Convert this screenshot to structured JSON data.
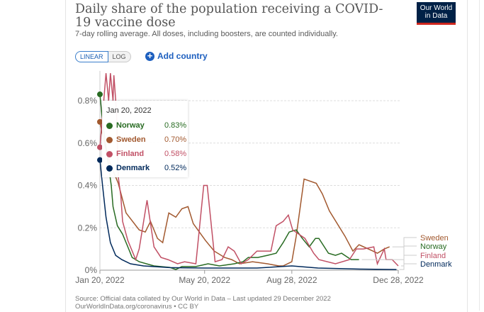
{
  "header": {
    "title": "Daily share of the population receiving a COVID-19 vaccine dose",
    "subtitle": "7-day rolling average. All doses, including boosters, are counted individually.",
    "logo_text": "Our World in Data"
  },
  "controls": {
    "linear": "LINEAR",
    "log": "LOG",
    "add_country": "Add country"
  },
  "tooltip": {
    "date": "Jan 20, 2022",
    "rows": [
      {
        "name": "Norway",
        "value": "0.83%",
        "color": "#286b22"
      },
      {
        "name": "Sweden",
        "value": "0.70%",
        "color": "#a2592f"
      },
      {
        "name": "Finland",
        "value": "0.58%",
        "color": "#c15065"
      },
      {
        "name": "Denmark",
        "value": "0.52%",
        "color": "#00295b"
      }
    ]
  },
  "footer": {
    "source": "Source: Official data collated by Our World in Data – Last updated 29 December 2022",
    "license": "OurWorldInData.org/coronavirus • CC BY"
  },
  "chart_data": {
    "type": "line",
    "title": "Daily share of the population receiving a COVID-19 vaccine dose",
    "x_unit": "days since Jan 20, 2022",
    "xlim": [
      0,
      342
    ],
    "ylim": [
      0,
      0.8
    ],
    "yticks": [
      {
        "v": 0,
        "label": "0%"
      },
      {
        "v": 0.2,
        "label": "0.2%"
      },
      {
        "v": 0.4,
        "label": "0.4%"
      },
      {
        "v": 0.6,
        "label": "0.6%"
      },
      {
        "v": 0.8,
        "label": "0.8%"
      }
    ],
    "xticks": [
      {
        "v": 0,
        "label": "Jan 20, 2022"
      },
      {
        "v": 120,
        "label": "May 20, 2022"
      },
      {
        "v": 220,
        "label": "Aug 28, 2022"
      },
      {
        "v": 342,
        "label": "Dec 28, 2022"
      }
    ],
    "legend": [
      "Sweden",
      "Norway",
      "Finland",
      "Denmark"
    ],
    "series": [
      {
        "name": "Sweden",
        "color": "#a2592f",
        "points": [
          [
            0,
            0.7
          ],
          [
            5,
            0.6
          ],
          [
            12,
            0.5
          ],
          [
            21,
            0.41
          ],
          [
            30,
            0.27
          ],
          [
            45,
            0.19
          ],
          [
            52,
            0.18
          ],
          [
            58,
            0.23
          ],
          [
            66,
            0.15
          ],
          [
            72,
            0.13
          ],
          [
            79,
            0.27
          ],
          [
            87,
            0.25
          ],
          [
            94,
            0.29
          ],
          [
            101,
            0.3
          ],
          [
            107,
            0.22
          ],
          [
            121,
            0.14
          ],
          [
            131,
            0.09
          ],
          [
            143,
            0.06
          ],
          [
            151,
            0.05
          ],
          [
            160,
            0.03
          ],
          [
            175,
            0.04
          ],
          [
            192,
            0.03
          ],
          [
            205,
            0.02
          ],
          [
            210,
            0.02
          ],
          [
            220,
            0.04
          ],
          [
            225,
            0.16
          ],
          [
            234,
            0.43
          ],
          [
            248,
            0.41
          ],
          [
            255,
            0.36
          ],
          [
            263,
            0.28
          ],
          [
            281,
            0.16
          ],
          [
            290,
            0.09
          ],
          [
            297,
            0.12
          ],
          [
            313,
            0.09
          ],
          [
            318,
            0.08
          ],
          [
            326,
            0.1
          ],
          [
            332,
            0.11
          ]
        ]
      },
      {
        "name": "Norway",
        "color": "#286b22",
        "points": [
          [
            0,
            0.83
          ],
          [
            3,
            0.7
          ],
          [
            8,
            0.55
          ],
          [
            13,
            0.4
          ],
          [
            15,
            0.3
          ],
          [
            20,
            0.21
          ],
          [
            26,
            0.17
          ],
          [
            32,
            0.11
          ],
          [
            37,
            0.06
          ],
          [
            45,
            0.04
          ],
          [
            62,
            0.02
          ],
          [
            80,
            0.013
          ],
          [
            87,
            0.003
          ],
          [
            94,
            0.017
          ],
          [
            110,
            0.017
          ],
          [
            124,
            0.03
          ],
          [
            137,
            0.02
          ],
          [
            154,
            0.03
          ],
          [
            164,
            0.04
          ],
          [
            170,
            0.06
          ],
          [
            181,
            0.06
          ],
          [
            192,
            0.07
          ],
          [
            202,
            0.08
          ],
          [
            210,
            0.13
          ],
          [
            217,
            0.18
          ],
          [
            225,
            0.19
          ],
          [
            232,
            0.15
          ],
          [
            240,
            0.11
          ],
          [
            247,
            0.15
          ],
          [
            251,
            0.15
          ],
          [
            262,
            0.08
          ],
          [
            270,
            0.07
          ],
          [
            277,
            0.08
          ],
          [
            288,
            0.05
          ],
          [
            297,
            0.05
          ]
        ]
      },
      {
        "name": "Finland",
        "color": "#c15065",
        "points": [
          [
            0,
            0.58
          ],
          [
            7,
            0.93
          ],
          [
            10,
            0.8
          ],
          [
            12,
            0.93
          ],
          [
            15,
            0.8
          ],
          [
            16,
            0.92
          ],
          [
            19,
            0.75
          ],
          [
            21,
            0.44
          ],
          [
            24,
            0.35
          ],
          [
            26,
            0.23
          ],
          [
            32,
            0.14
          ],
          [
            41,
            0.05
          ],
          [
            45,
            0.1
          ],
          [
            54,
            0.33
          ],
          [
            62,
            0.11
          ],
          [
            70,
            0.06
          ],
          [
            78,
            0.05
          ],
          [
            89,
            0.03
          ],
          [
            97,
            0.04
          ],
          [
            110,
            0.03
          ],
          [
            119,
            0.4
          ],
          [
            123,
            0.4
          ],
          [
            132,
            0.04
          ],
          [
            140,
            0.05
          ],
          [
            147,
            0.11
          ],
          [
            154,
            0.09
          ],
          [
            162,
            0.03
          ],
          [
            170,
            0.05
          ],
          [
            180,
            0.09
          ],
          [
            196,
            0.09
          ],
          [
            202,
            0.21
          ],
          [
            210,
            0.23
          ],
          [
            216,
            0.26
          ],
          [
            221,
            0.19
          ],
          [
            235,
            0.15
          ],
          [
            245,
            0.08
          ],
          [
            251,
            0.05
          ],
          [
            270,
            0.03
          ],
          [
            286,
            0.05
          ],
          [
            294,
            0.1
          ],
          [
            302,
            0.1
          ],
          [
            314,
            0.11
          ],
          [
            318,
            0.03
          ],
          [
            326,
            0.1
          ],
          [
            328,
            0.05
          ],
          [
            335,
            0.05
          ],
          [
            342,
            0.02
          ]
        ]
      },
      {
        "name": "Denmark",
        "color": "#00295b",
        "points": [
          [
            0,
            0.52
          ],
          [
            3,
            0.4
          ],
          [
            7,
            0.25
          ],
          [
            12,
            0.13
          ],
          [
            18,
            0.07
          ],
          [
            25,
            0.05
          ],
          [
            35,
            0.03
          ],
          [
            50,
            0.02
          ],
          [
            80,
            0.012
          ],
          [
            120,
            0.01
          ],
          [
            180,
            0.01
          ],
          [
            220,
            0.02
          ],
          [
            250,
            0.01
          ],
          [
            300,
            0.005
          ],
          [
            340,
            0.003
          ]
        ]
      }
    ]
  }
}
